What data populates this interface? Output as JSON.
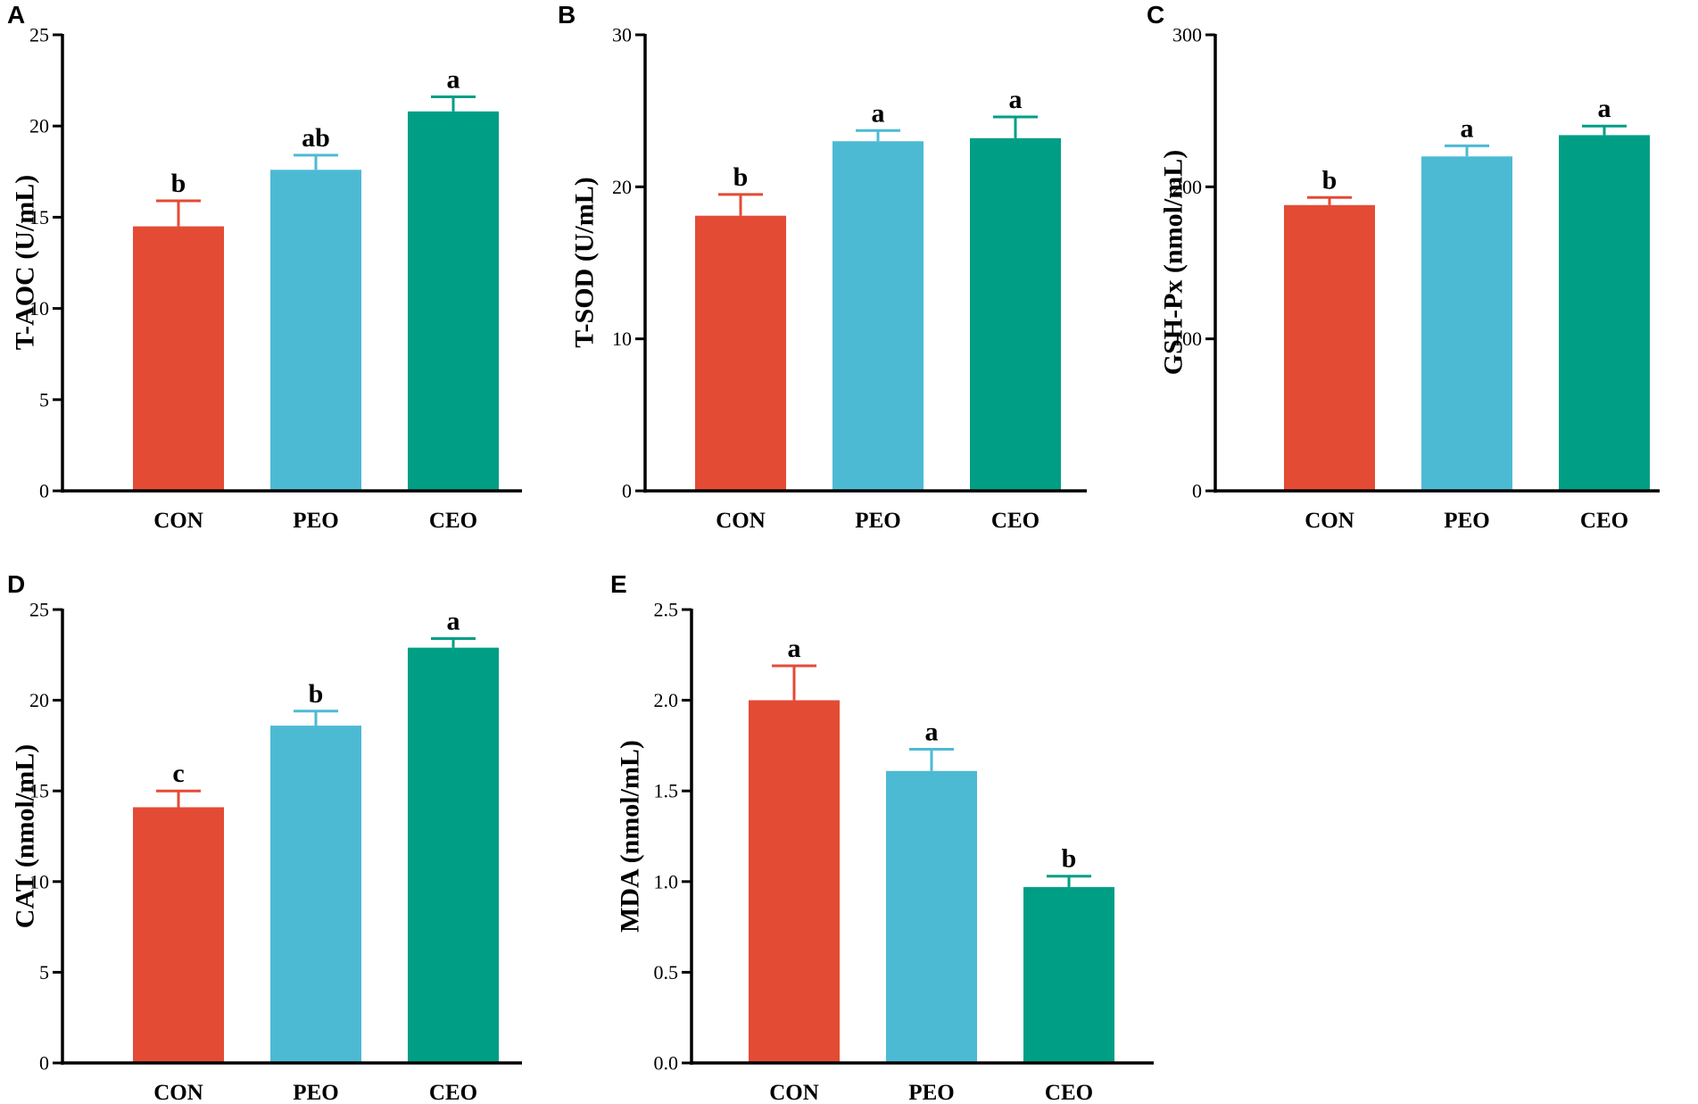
{
  "colors": {
    "CON": "#E34B35",
    "PEO": "#4DBAD4",
    "CEO": "#009E85",
    "axis": "#000000"
  },
  "chart_data": [
    {
      "panel": "A",
      "type": "bar",
      "title": "",
      "ylabel": "T-AOC (U/mL)",
      "xlabel": "",
      "categories": [
        "CON",
        "PEO",
        "CEO"
      ],
      "values": [
        14.5,
        17.6,
        20.8
      ],
      "errors": [
        1.4,
        0.8,
        0.8
      ],
      "significance": [
        "b",
        "ab",
        "a"
      ],
      "ylim": [
        0,
        25
      ],
      "yticks": [
        "0",
        "5",
        "10",
        "15",
        "20",
        "25"
      ],
      "ytick_values": [
        0,
        5,
        10,
        15,
        20,
        25
      ],
      "grid": false
    },
    {
      "panel": "B",
      "type": "bar",
      "title": "",
      "ylabel": "T-SOD (U/mL)",
      "xlabel": "",
      "categories": [
        "CON",
        "PEO",
        "CEO"
      ],
      "values": [
        18.1,
        23.0,
        23.2
      ],
      "errors": [
        1.4,
        0.7,
        1.4
      ],
      "significance": [
        "b",
        "a",
        "a"
      ],
      "ylim": [
        0,
        30
      ],
      "yticks": [
        "0",
        "10",
        "20",
        "30"
      ],
      "ytick_values": [
        0,
        10,
        20,
        30
      ],
      "grid": false
    },
    {
      "panel": "C",
      "type": "bar",
      "title": "",
      "ylabel": "GSH-Px (nmol/mL)",
      "xlabel": "",
      "categories": [
        "CON",
        "PEO",
        "CEO"
      ],
      "values": [
        188,
        220,
        234
      ],
      "errors": [
        5,
        7,
        6
      ],
      "significance": [
        "b",
        "a",
        "a"
      ],
      "ylim": [
        0,
        300
      ],
      "yticks": [
        "0",
        "100",
        "200",
        "300"
      ],
      "ytick_values": [
        0,
        100,
        200,
        300
      ],
      "grid": false
    },
    {
      "panel": "D",
      "type": "bar",
      "title": "",
      "ylabel": "CAT (nmol/mL)",
      "xlabel": "",
      "categories": [
        "CON",
        "PEO",
        "CEO"
      ],
      "values": [
        14.1,
        18.6,
        22.9
      ],
      "errors": [
        0.9,
        0.8,
        0.5
      ],
      "significance": [
        "c",
        "b",
        "a"
      ],
      "ylim": [
        0,
        25
      ],
      "yticks": [
        "0",
        "5",
        "10",
        "15",
        "20",
        "25"
      ],
      "ytick_values": [
        0,
        5,
        10,
        15,
        20,
        25
      ],
      "grid": false
    },
    {
      "panel": "E",
      "type": "bar",
      "title": "",
      "ylabel": "MDA (nmol/mL)",
      "xlabel": "",
      "categories": [
        "CON",
        "PEO",
        "CEO"
      ],
      "values": [
        2.0,
        1.61,
        0.97
      ],
      "errors": [
        0.19,
        0.12,
        0.06
      ],
      "significance": [
        "a",
        "a",
        "b"
      ],
      "ylim": [
        0,
        2.5
      ],
      "yticks": [
        "0.0",
        "0.5",
        "1.0",
        "1.5",
        "2.0",
        "2.5"
      ],
      "ytick_values": [
        0,
        0.5,
        1.0,
        1.5,
        2.0,
        2.5
      ],
      "grid": false
    }
  ]
}
